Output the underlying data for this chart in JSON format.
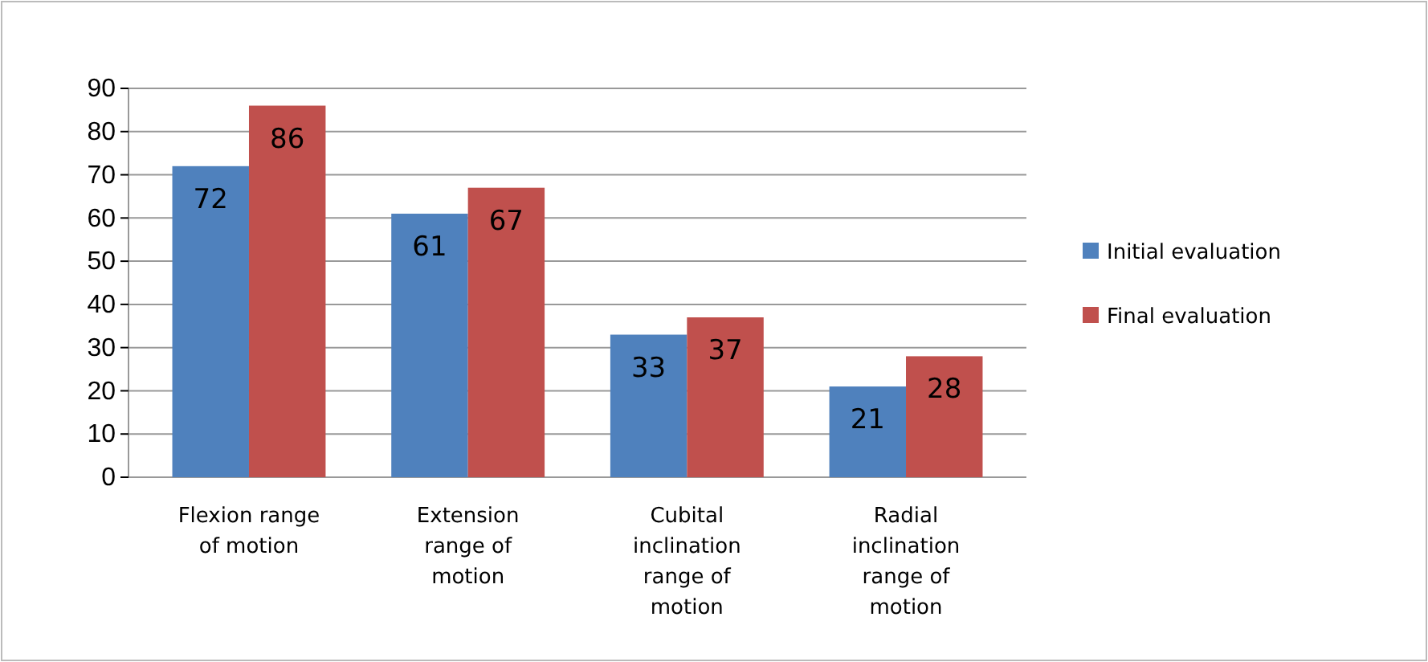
{
  "chart_data": {
    "type": "bar",
    "categories": [
      "Flexion range of motion",
      "Extension range of motion",
      "Cubital inclination range of motion",
      "Radial inclination range of motion"
    ],
    "series": [
      {
        "name": "Initial evaluation",
        "color": "#4f81bd",
        "values": [
          72,
          61,
          33,
          21
        ]
      },
      {
        "name": "Final evaluation",
        "color": "#c0504d",
        "values": [
          86,
          67,
          37,
          28
        ]
      }
    ],
    "ylim": [
      0,
      90
    ],
    "yticks": [
      0,
      10,
      20,
      30,
      40,
      50,
      60,
      70,
      80,
      90
    ],
    "grid": "y",
    "legend": "right",
    "data_labels": true
  }
}
